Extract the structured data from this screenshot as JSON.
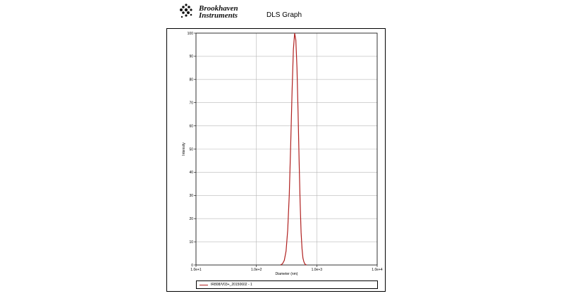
{
  "header": {
    "logo_line1": "Brookhaven",
    "logo_line2": "Instruments",
    "title": "DLS Graph"
  },
  "chart_data": {
    "type": "line",
    "title": "DLS Graph",
    "xlabel": "Diameter (nm)",
    "ylabel": "Intensity",
    "x_scale": "log",
    "xlim": [
      10,
      10000
    ],
    "ylim": [
      0,
      100
    ],
    "x_ticks": [
      10,
      100,
      1000,
      10000
    ],
    "x_tick_labels": [
      "1.0e+1",
      "1.0e+2",
      "1.0e+3",
      "1.0e+4"
    ],
    "y_ticks": [
      0,
      10,
      20,
      30,
      40,
      50,
      60,
      70,
      80,
      90,
      100
    ],
    "y_tick_labels": [
      "0",
      "10",
      "20",
      "30",
      "40",
      "50",
      "60",
      "70",
      "80",
      "90",
      "100"
    ],
    "grid": true,
    "legend_position": "bottom",
    "line_color": "#b0201f",
    "series": [
      {
        "name": "IR808/V03+_20150602 - 1",
        "x": [
          250,
          270,
          290,
          310,
          330,
          350,
          370,
          390,
          410,
          430,
          450,
          470,
          490,
          510,
          530,
          550,
          570,
          590,
          610,
          630,
          650,
          680
        ],
        "y": [
          0,
          0.5,
          2,
          6,
          15,
          30,
          52,
          75,
          93,
          100,
          97,
          85,
          66,
          45,
          27,
          14,
          7,
          3,
          1.5,
          0.6,
          0.2,
          0
        ]
      }
    ]
  }
}
